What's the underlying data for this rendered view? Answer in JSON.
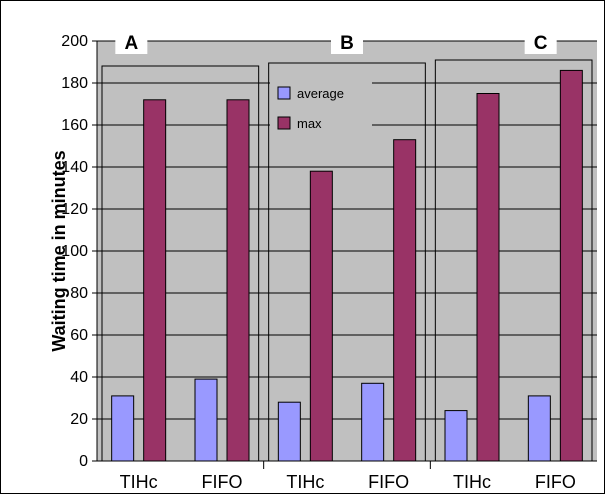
{
  "chart_data": {
    "type": "bar",
    "ylabel": "Waiting time in minutes",
    "ylim": [
      0,
      200
    ],
    "yticks": [
      0,
      20,
      40,
      60,
      80,
      100,
      120,
      140,
      160,
      180,
      200
    ],
    "grid": true,
    "legend_position": "top-center",
    "groups": [
      "A",
      "B",
      "C"
    ],
    "categories": [
      "TIHc",
      "FIFO",
      "TIHc",
      "FIFO",
      "TIHc",
      "FIFO"
    ],
    "category_group": [
      0,
      0,
      1,
      1,
      2,
      2
    ],
    "series": [
      {
        "name": "average",
        "color": "#9999ff",
        "values": [
          31,
          39,
          28,
          37,
          24,
          31
        ]
      },
      {
        "name": "max",
        "color": "#993366",
        "values": [
          172,
          172,
          138,
          153,
          175,
          186
        ]
      }
    ]
  }
}
